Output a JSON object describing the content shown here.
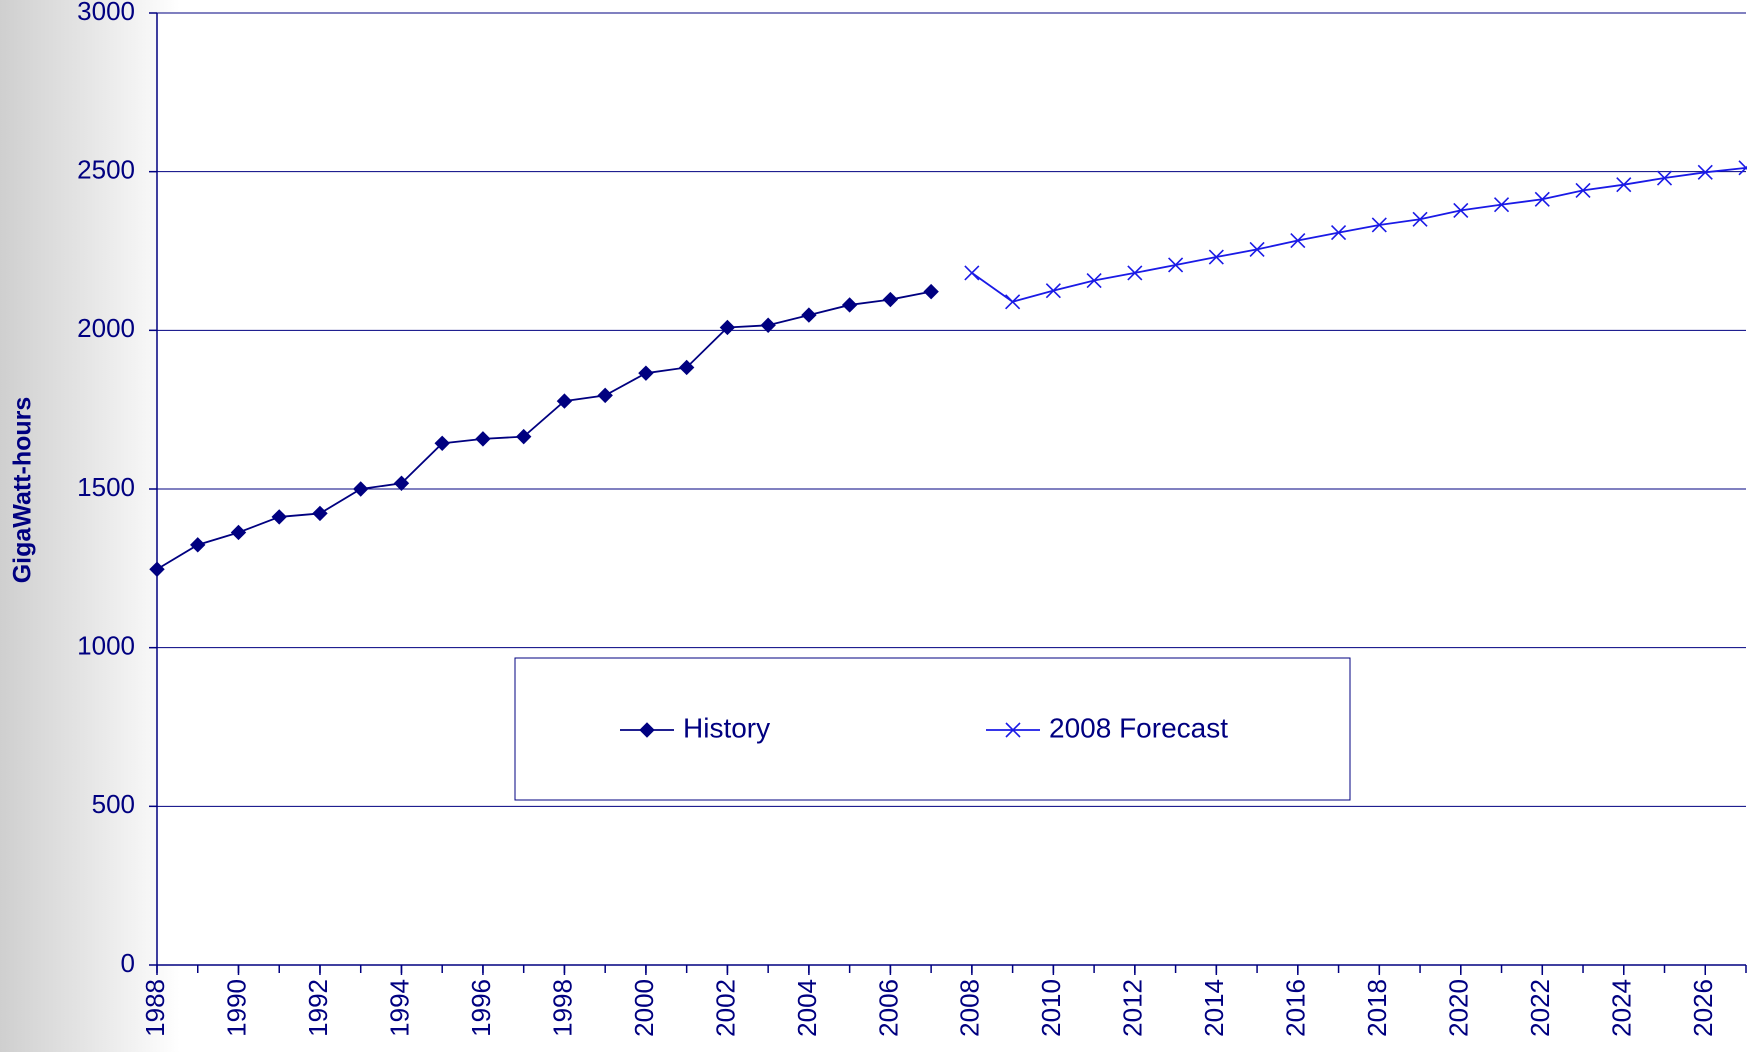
{
  "chart_data": {
    "type": "line",
    "ylabel": "GigaWatt-hours",
    "x": [
      1988,
      1989,
      1990,
      1991,
      1992,
      1993,
      1994,
      1995,
      1996,
      1997,
      1998,
      1999,
      2000,
      2001,
      2002,
      2003,
      2004,
      2005,
      2006,
      2007,
      2008,
      2009,
      2010,
      2011,
      2012,
      2013,
      2014,
      2015,
      2016,
      2017,
      2018,
      2019,
      2020,
      2021,
      2022,
      2023,
      2024,
      2025,
      2026,
      2027
    ],
    "series": [
      {
        "name": "History",
        "color": "#000080",
        "marker": "diamond",
        "values": [
          1247,
          1324,
          1363,
          1412,
          1423,
          1500,
          1518,
          1644,
          1658,
          1665,
          1777,
          1795,
          1865,
          1883,
          2009,
          2016,
          2048,
          2080,
          2097,
          2122,
          null,
          null,
          null,
          null,
          null,
          null,
          null,
          null,
          null,
          null,
          null,
          null,
          null,
          null,
          null,
          null,
          null,
          null,
          null,
          null
        ]
      },
      {
        "name": "2008 Forecast",
        "color": "#1a1ae6",
        "marker": "x",
        "values": [
          null,
          null,
          null,
          null,
          null,
          null,
          null,
          null,
          null,
          null,
          null,
          null,
          null,
          null,
          null,
          null,
          null,
          null,
          null,
          null,
          2181,
          2090,
          2125,
          2157,
          2181,
          2206,
          2231,
          2255,
          2283,
          2308,
          2332,
          2350,
          2378,
          2396,
          2413,
          2441,
          2459,
          2480,
          2498,
          2512
        ]
      }
    ],
    "xlim": [
      1988,
      2027
    ],
    "xticks": [
      1988,
      1990,
      1992,
      1994,
      1996,
      1998,
      2000,
      2002,
      2004,
      2006,
      2008,
      2010,
      2012,
      2014,
      2016,
      2018,
      2020,
      2022,
      2024,
      2026
    ],
    "ylim": [
      0,
      3000
    ],
    "yticks": [
      0,
      500,
      1000,
      1500,
      2000,
      2500,
      3000
    ],
    "grid": true
  }
}
